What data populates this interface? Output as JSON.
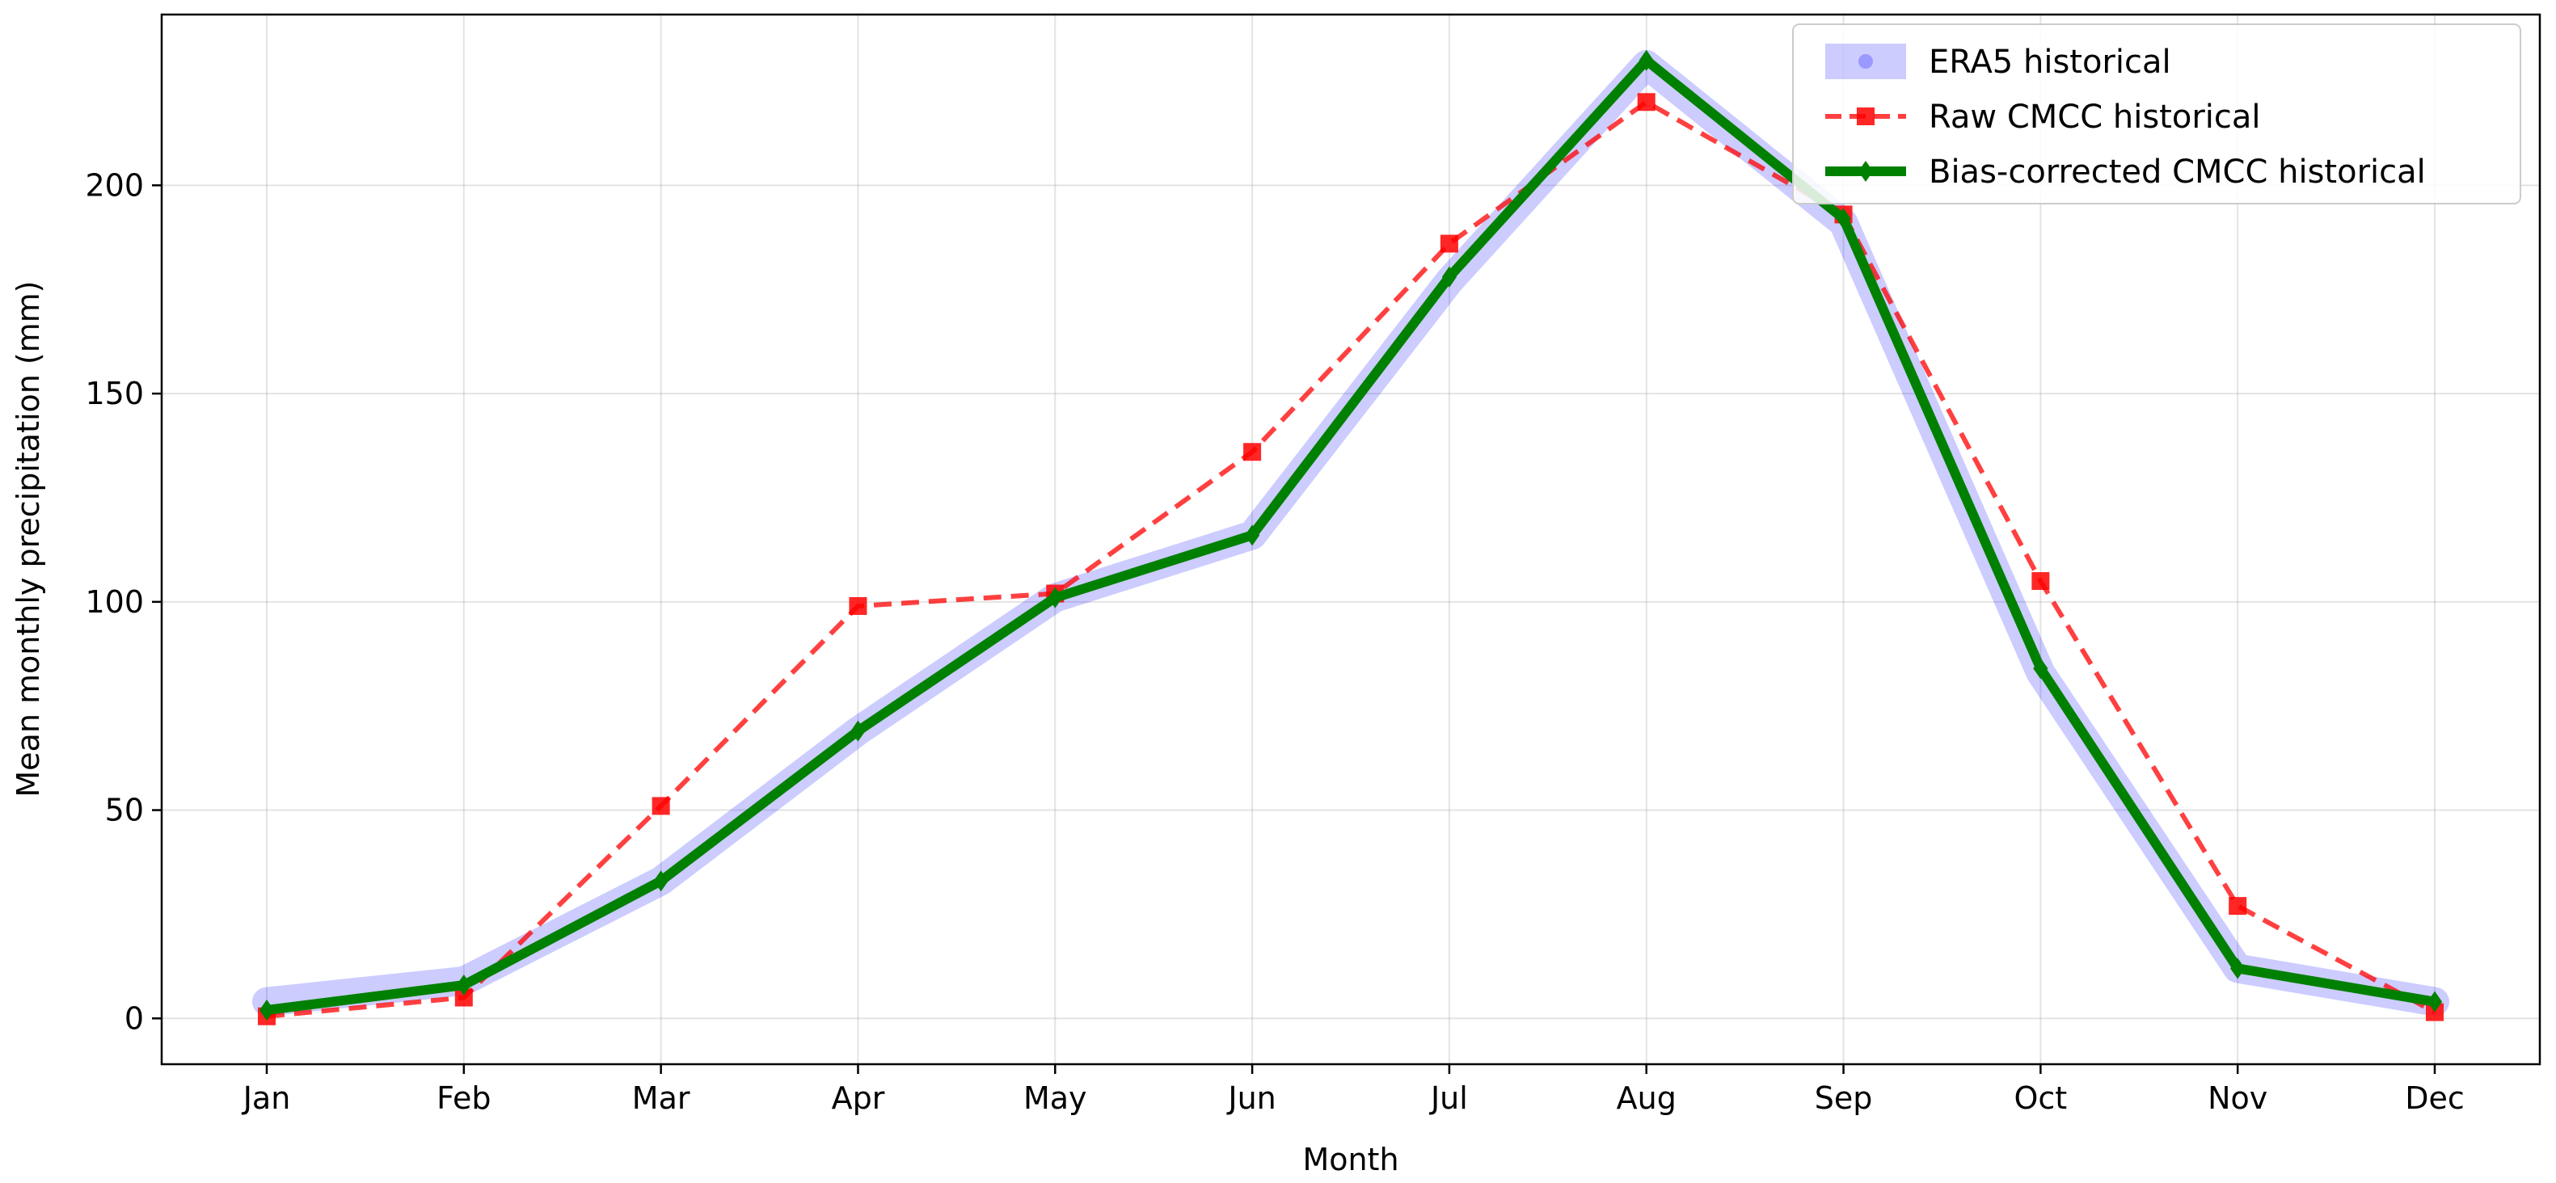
{
  "chart_data": {
    "type": "line",
    "title": "",
    "xlabel": "Month",
    "ylabel": "Mean monthly precipitation (mm)",
    "categories": [
      "Jan",
      "Feb",
      "Mar",
      "Apr",
      "May",
      "Jun",
      "Jul",
      "Aug",
      "Sep",
      "Oct",
      "Nov",
      "Dec"
    ],
    "yticks": [
      0,
      50,
      100,
      150,
      200
    ],
    "ylim": [
      -11,
      241
    ],
    "grid": true,
    "legend_position": "top-right",
    "series": [
      {
        "name": "ERA5 historical",
        "values": [
          4,
          9,
          33,
          69,
          101,
          116,
          177,
          229,
          191,
          83,
          12,
          4
        ],
        "color": "#0000ff",
        "opacity": 0.2,
        "style": "solid",
        "marker": "circle"
      },
      {
        "name": "Raw CMCC historical",
        "values": [
          0.5,
          5,
          51,
          99,
          102,
          136,
          186,
          220,
          193,
          105,
          27,
          1.5
        ],
        "color": "#ff0000",
        "opacity": 0.75,
        "style": "dashed",
        "marker": "square"
      },
      {
        "name": "Bias-corrected CMCC historical",
        "values": [
          2,
          8,
          33,
          69,
          101,
          116,
          178,
          230,
          192,
          84,
          12,
          4
        ],
        "color": "#008000",
        "opacity": 1,
        "style": "solid",
        "marker": "diamond"
      }
    ]
  }
}
